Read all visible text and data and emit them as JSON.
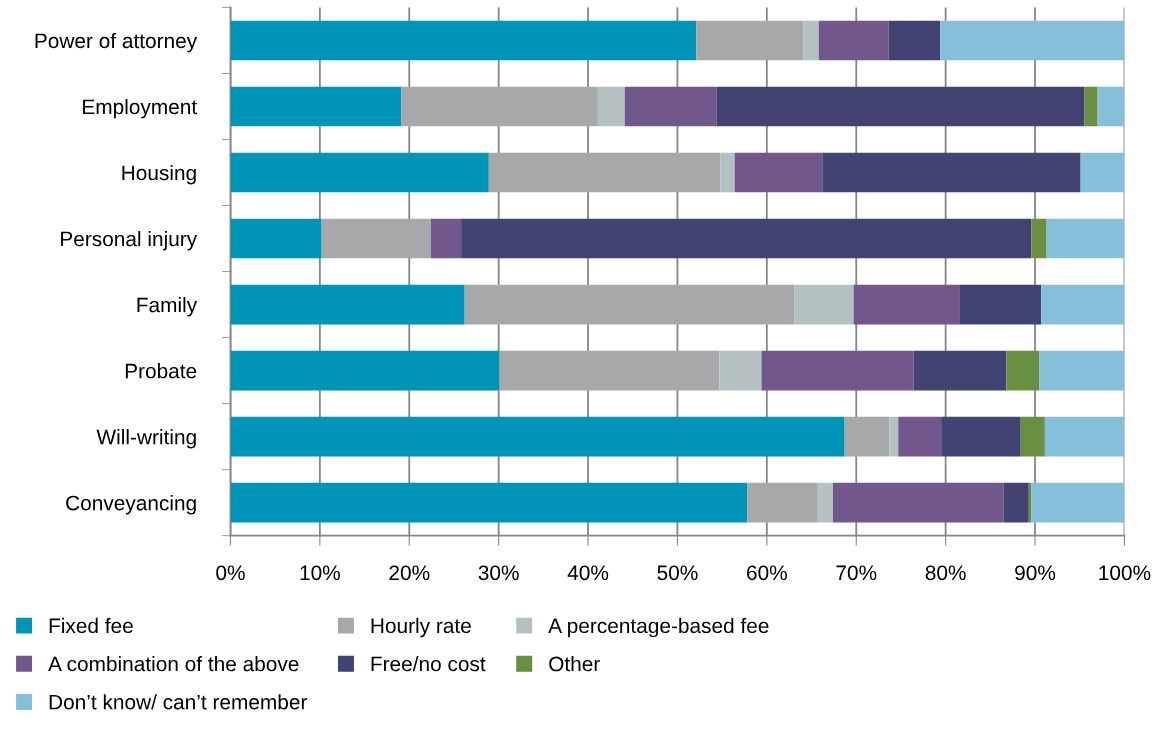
{
  "chart_data": {
    "type": "bar",
    "orientation": "horizontal",
    "stacked": true,
    "categories": [
      "Power of attorney",
      "Employment",
      "Housing",
      "Personal injury",
      "Family",
      "Probate",
      "Will-writing",
      "Conveyancing"
    ],
    "series": [
      {
        "name": "Fixed fee",
        "color": "#0095b6",
        "values": [
          52.1,
          19.1,
          28.9,
          10.2,
          26.2,
          30.1,
          68.7,
          57.8
        ]
      },
      {
        "name": "Hourly rate",
        "color": "#a7a8aa",
        "values": [
          12.0,
          22.0,
          25.9,
          12.2,
          36.9,
          24.6,
          5.0,
          7.9
        ]
      },
      {
        "name": "A percentage-based fee",
        "color": "#b5c0c3",
        "values": [
          1.7,
          3.0,
          1.6,
          0,
          6.6,
          4.7,
          1.0,
          1.7
        ]
      },
      {
        "name": "A combination of the above",
        "color": "#72578d",
        "values": [
          7.8,
          10.3,
          9.8,
          3.4,
          11.9,
          17.0,
          4.8,
          19.1
        ]
      },
      {
        "name": "Free/no cost",
        "color": "#424372",
        "values": [
          5.8,
          41.1,
          28.9,
          63.8,
          9.1,
          10.4,
          8.9,
          2.8
        ]
      },
      {
        "name": "Other",
        "color": "#6a8f41",
        "values": [
          0,
          1.5,
          0,
          1.7,
          0,
          3.7,
          2.7,
          0.3
        ]
      },
      {
        "name": "Don’t know/ can’t remember",
        "color": "#85bfd9",
        "values": [
          20.6,
          3.0,
          4.9,
          8.7,
          9.3,
          9.5,
          8.9,
          10.4
        ]
      }
    ],
    "xlim": [
      0,
      100
    ],
    "xticks": [
      {
        "value": 0,
        "label": "0%"
      },
      {
        "value": 10,
        "label": "10%"
      },
      {
        "value": 20,
        "label": "20%"
      },
      {
        "value": 30,
        "label": "30%"
      },
      {
        "value": 40,
        "label": "40%"
      },
      {
        "value": 50,
        "label": "50%"
      },
      {
        "value": 60,
        "label": "60%"
      },
      {
        "value": 70,
        "label": "70%"
      },
      {
        "value": 80,
        "label": "80%"
      },
      {
        "value": 90,
        "label": "90%"
      },
      {
        "value": 100,
        "label": "100%"
      }
    ],
    "grid": "x",
    "legend": "bottom"
  }
}
